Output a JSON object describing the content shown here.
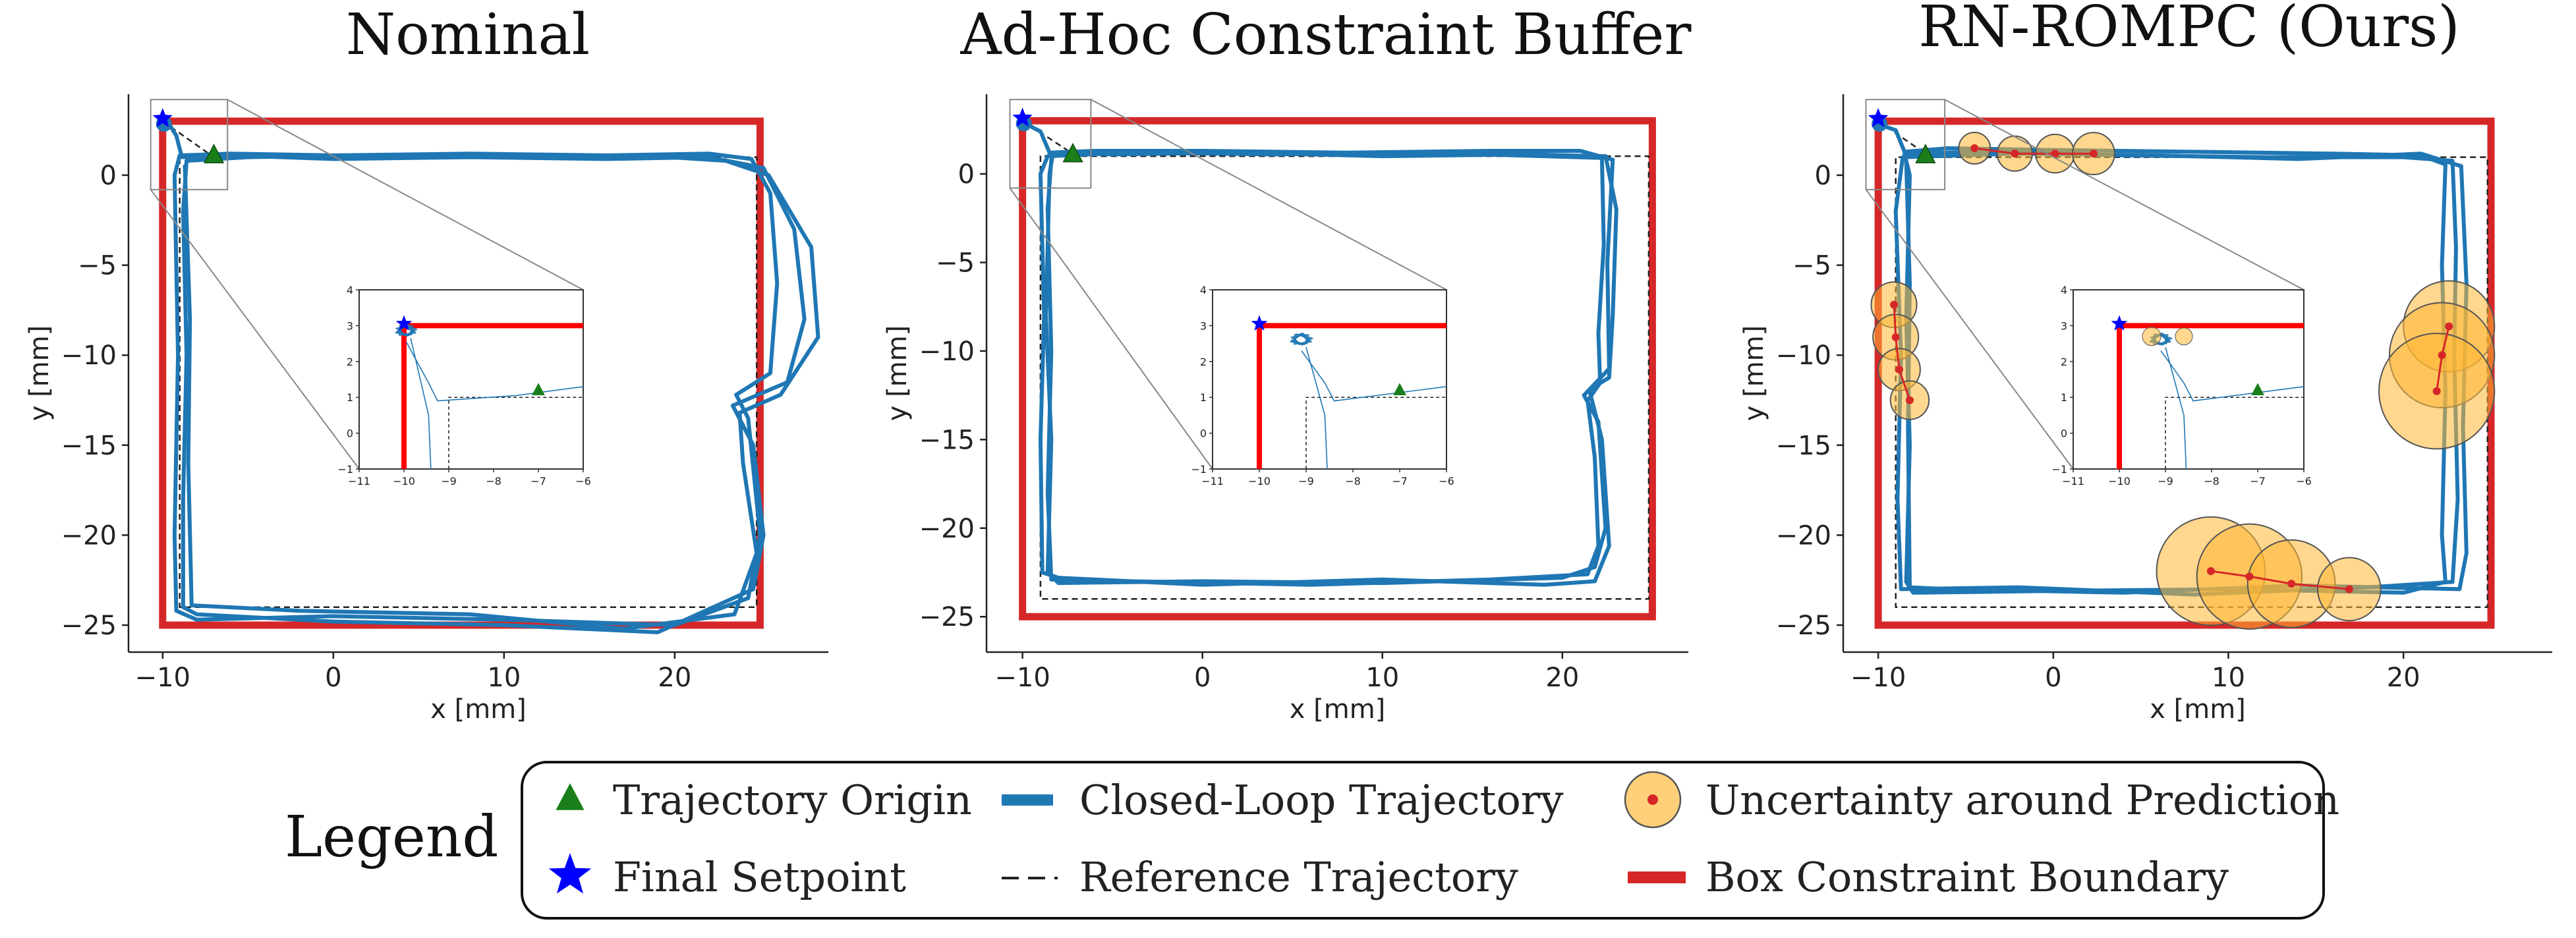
{
  "chart_data": [
    {
      "type": "line",
      "title": "Nominal",
      "xlabel": "x [mm]",
      "ylabel": "y [mm]",
      "xlim": [
        -12,
        29
      ],
      "ylim": [
        -26.5,
        4.5
      ],
      "xticks": [
        -10,
        0,
        10,
        20
      ],
      "yticks": [
        0,
        -5,
        -10,
        -15,
        -20,
        -25
      ],
      "box_constraint": {
        "x": [
          -10,
          25
        ],
        "y": [
          -25,
          3
        ]
      },
      "reference_trajectory": [
        [
          -10,
          3
        ],
        [
          -7,
          1
        ],
        [
          24.8,
          1
        ],
        [
          24.8,
          -24
        ],
        [
          -9,
          -24
        ],
        [
          -9,
          1
        ],
        [
          -7,
          1
        ]
      ],
      "trajectory_origin": [
        -7,
        1.1
      ],
      "final_setpoint": [
        -10,
        3
      ],
      "closed_loop_laps": [
        [
          [
            -10,
            3
          ],
          [
            -9.6,
            2.8
          ],
          [
            -9.2,
            2.2
          ],
          [
            -8.9,
            1.1
          ],
          [
            -6,
            1.2
          ],
          [
            0,
            1.1
          ],
          [
            8,
            1.2
          ],
          [
            16,
            1.1
          ],
          [
            22,
            1.2
          ],
          [
            24.5,
            0.9
          ],
          [
            25.6,
            -1
          ],
          [
            26,
            -6
          ],
          [
            25.6,
            -11
          ],
          [
            23.6,
            -12.2
          ],
          [
            24.3,
            -13.5
          ],
          [
            25,
            -20
          ],
          [
            24.3,
            -23.5
          ],
          [
            20,
            -25
          ],
          [
            10,
            -24.7
          ],
          [
            0,
            -24.5
          ],
          [
            -8,
            -24.7
          ],
          [
            -9.2,
            -24.2
          ],
          [
            -9.3,
            -20
          ],
          [
            -9.1,
            -10
          ],
          [
            -9.3,
            0
          ],
          [
            -9,
            1.1
          ]
        ],
        [
          [
            -9,
            1
          ],
          [
            -6,
            1.1
          ],
          [
            0,
            0.9
          ],
          [
            8,
            1.0
          ],
          [
            16,
            0.9
          ],
          [
            22,
            1.0
          ],
          [
            25.2,
            0.4
          ],
          [
            27,
            -3
          ],
          [
            27.6,
            -8
          ],
          [
            26.6,
            -11.5
          ],
          [
            23.4,
            -12.8
          ],
          [
            24.6,
            -15
          ],
          [
            25.2,
            -20
          ],
          [
            24.6,
            -23
          ],
          [
            19,
            -25.4
          ],
          [
            10,
            -25
          ],
          [
            0,
            -24.8
          ],
          [
            -8,
            -24.4
          ],
          [
            -8.8,
            -24
          ],
          [
            -8.8,
            -18
          ],
          [
            -8.6,
            -10
          ],
          [
            -8.8,
            -2
          ],
          [
            -8.6,
            0.8
          ],
          [
            -7,
            1.1
          ]
        ],
        [
          [
            -8.6,
            0.8
          ],
          [
            -5,
            1.0
          ],
          [
            2,
            1.1
          ],
          [
            10,
            1.0
          ],
          [
            18,
            1.1
          ],
          [
            23,
            0.8
          ],
          [
            25.5,
            0
          ],
          [
            28,
            -4
          ],
          [
            28.4,
            -9
          ],
          [
            26.2,
            -12.2
          ],
          [
            23.8,
            -13.2
          ],
          [
            24,
            -16
          ],
          [
            24.8,
            -21
          ],
          [
            23.5,
            -24.4
          ],
          [
            17,
            -25.2
          ],
          [
            8,
            -24.4
          ],
          [
            -2,
            -24.2
          ],
          [
            -8.3,
            -23.9
          ],
          [
            -8.5,
            -16
          ],
          [
            -8.4,
            -8
          ],
          [
            -8.7,
            0.5
          ]
        ]
      ],
      "inset": {
        "xlim": [
          -11,
          -6
        ],
        "ylim": [
          -1,
          4
        ],
        "xticks": [
          -11,
          -10,
          -9,
          -8,
          -7,
          -6
        ],
        "yticks": [
          -1,
          0,
          1,
          2,
          3,
          4
        ]
      }
    },
    {
      "type": "line",
      "title": "Ad-Hoc Constraint Buffer",
      "xlabel": "x [mm]",
      "ylabel": "y [mm]",
      "xlim": [
        -12,
        27
      ],
      "ylim": [
        -27,
        4.5
      ],
      "xticks": [
        -10,
        0,
        10,
        20
      ],
      "yticks": [
        0,
        -5,
        -10,
        -15,
        -20,
        -25
      ],
      "box_constraint": {
        "x": [
          -10,
          25
        ],
        "y": [
          -25,
          3
        ]
      },
      "reference_trajectory": [
        [
          -10,
          3
        ],
        [
          -7,
          1
        ],
        [
          24.8,
          1
        ],
        [
          24.8,
          -24
        ],
        [
          -9,
          -24
        ],
        [
          -9,
          1
        ],
        [
          -7,
          1
        ]
      ],
      "trajectory_origin": [
        -7.2,
        1.1
      ],
      "final_setpoint": [
        -10,
        3
      ],
      "closed_loop_laps": [
        [
          [
            -10,
            3
          ],
          [
            -9.4,
            2.6
          ],
          [
            -9,
            2.4
          ],
          [
            -8.5,
            1.2
          ],
          [
            -6,
            1.3
          ],
          [
            0,
            1.3
          ],
          [
            8,
            1.2
          ],
          [
            16,
            1.3
          ],
          [
            21,
            1.3
          ],
          [
            22.8,
            0.8
          ],
          [
            22.5,
            -5
          ],
          [
            22.6,
            -11
          ],
          [
            21.2,
            -12.5
          ],
          [
            22,
            -14
          ],
          [
            22.4,
            -20
          ],
          [
            21.8,
            -22.2
          ],
          [
            20,
            -22.8
          ],
          [
            10,
            -23.1
          ],
          [
            0,
            -23
          ],
          [
            -8,
            -23.1
          ],
          [
            -8.6,
            -22.5
          ],
          [
            -8.4,
            -15
          ],
          [
            -8.7,
            -8
          ],
          [
            -8.5,
            0
          ],
          [
            -8.3,
            1.2
          ]
        ],
        [
          [
            -8.3,
            1.2
          ],
          [
            -5,
            1.1
          ],
          [
            2,
            1.2
          ],
          [
            10,
            1.0
          ],
          [
            18,
            1.1
          ],
          [
            22.4,
            1.0
          ],
          [
            23,
            -2
          ],
          [
            22.8,
            -8
          ],
          [
            22.6,
            -11.5
          ],
          [
            21.5,
            -12.2
          ],
          [
            22.2,
            -15
          ],
          [
            22.6,
            -21
          ],
          [
            21.8,
            -23
          ],
          [
            19,
            -23.2
          ],
          [
            10,
            -22.9
          ],
          [
            0,
            -23.2
          ],
          [
            -8,
            -22.8
          ],
          [
            -8.9,
            -22.5
          ],
          [
            -9,
            -15
          ],
          [
            -8.8,
            -8
          ],
          [
            -9,
            0
          ],
          [
            -8.6,
            1
          ]
        ],
        [
          [
            -8.6,
            1
          ],
          [
            -4,
            1.2
          ],
          [
            4,
            1.1
          ],
          [
            12,
            1.2
          ],
          [
            19,
            1.0
          ],
          [
            22.2,
            0.9
          ],
          [
            22.3,
            -4
          ],
          [
            22,
            -9
          ],
          [
            22.1,
            -11.8
          ],
          [
            21.4,
            -12.8
          ],
          [
            21.8,
            -16
          ],
          [
            22,
            -21
          ],
          [
            21.4,
            -22.6
          ],
          [
            16,
            -22.9
          ],
          [
            6,
            -23.2
          ],
          [
            -4,
            -23
          ],
          [
            -8.4,
            -22.9
          ],
          [
            -8.6,
            -18
          ],
          [
            -8.4,
            -10
          ],
          [
            -8.6,
            -2
          ],
          [
            -8.4,
            0.8
          ]
        ]
      ],
      "inset": {
        "xlim": [
          -11,
          -6
        ],
        "ylim": [
          -1,
          4
        ],
        "xticks": [
          -11,
          -10,
          -9,
          -8,
          -7,
          -6
        ],
        "yticks": [
          -1,
          0,
          1,
          2,
          3,
          4
        ]
      }
    },
    {
      "type": "line",
      "title": "RN-ROMPC (Ours)",
      "xlabel": "x [mm]",
      "ylabel": "y [mm]",
      "xlim": [
        -12,
        28.5
      ],
      "ylim": [
        -26.5,
        4.5
      ],
      "xticks": [
        -10,
        0,
        10,
        20
      ],
      "yticks": [
        0,
        -5,
        -10,
        -15,
        -20,
        -25
      ],
      "box_constraint": {
        "x": [
          -10,
          25
        ],
        "y": [
          -25,
          3
        ]
      },
      "reference_trajectory": [
        [
          -10,
          3
        ],
        [
          -7,
          1
        ],
        [
          24.8,
          1
        ],
        [
          24.8,
          -24
        ],
        [
          -9,
          -24
        ],
        [
          -9,
          1
        ],
        [
          -7,
          1
        ]
      ],
      "trajectory_origin": [
        -7.3,
        1.1
      ],
      "final_setpoint": [
        -10,
        3
      ],
      "closed_loop_laps": [
        [
          [
            -10,
            3
          ],
          [
            -9.6,
            2.7
          ],
          [
            -9,
            2.5
          ],
          [
            -8.5,
            1.3
          ],
          [
            -6,
            1.5
          ],
          [
            0,
            1.4
          ],
          [
            8,
            1.3
          ],
          [
            16,
            1.2
          ],
          [
            21,
            1.1
          ],
          [
            22.4,
            0.6
          ],
          [
            22.2,
            -5
          ],
          [
            22.4,
            -12
          ],
          [
            22.2,
            -20
          ],
          [
            22.4,
            -22.6
          ],
          [
            20,
            -23.2
          ],
          [
            10,
            -23
          ],
          [
            0,
            -23.1
          ],
          [
            -8,
            -23.2
          ],
          [
            -8.4,
            -22.6
          ],
          [
            -8.2,
            -15
          ],
          [
            -8.4,
            -8
          ],
          [
            -8.2,
            0
          ],
          [
            -8.5,
            1.2
          ]
        ],
        [
          [
            -8.5,
            1.2
          ],
          [
            -4,
            1.3
          ],
          [
            4,
            1.1
          ],
          [
            12,
            1.0
          ],
          [
            20,
            1.0
          ],
          [
            22.8,
            0.8
          ],
          [
            23,
            -4
          ],
          [
            22.9,
            -10
          ],
          [
            23.1,
            -18
          ],
          [
            22.8,
            -22.6
          ],
          [
            18,
            -22.9
          ],
          [
            8,
            -23.3
          ],
          [
            -2,
            -22.9
          ],
          [
            -8.7,
            -23
          ],
          [
            -8.9,
            -18
          ],
          [
            -8.7,
            -10
          ],
          [
            -9,
            -2
          ],
          [
            -8.6,
            1
          ]
        ],
        [
          [
            -8.6,
            1
          ],
          [
            -2,
            1.2
          ],
          [
            6,
            1.1
          ],
          [
            14,
            0.9
          ],
          [
            21,
            1.2
          ],
          [
            23.3,
            0.5
          ],
          [
            23.6,
            -6
          ],
          [
            23.4,
            -14
          ],
          [
            23.6,
            -21
          ],
          [
            23.2,
            -23
          ],
          [
            14,
            -22.8
          ],
          [
            4,
            -23.2
          ],
          [
            -6,
            -23
          ],
          [
            -8.2,
            -22.9
          ],
          [
            -8.3,
            -14
          ],
          [
            -8.2,
            -6
          ],
          [
            -8.4,
            0.8
          ]
        ]
      ],
      "uncertainty_clusters": [
        {
          "centers": [
            [
              -4.5,
              1.5
            ],
            [
              -2.2,
              1.2
            ],
            [
              0.1,
              1.2
            ],
            [
              2.3,
              1.2
            ]
          ],
          "radii": [
            0.9,
            1.0,
            1.1,
            1.2
          ]
        },
        {
          "centers": [
            [
              -9.1,
              -7.2
            ],
            [
              -9.0,
              -9.0
            ],
            [
              -8.8,
              -10.8
            ],
            [
              -8.2,
              -12.5
            ]
          ],
          "radii": [
            1.3,
            1.3,
            1.2,
            1.1
          ]
        },
        {
          "centers": [
            [
              22.6,
              -8.4
            ],
            [
              22.2,
              -10.0
            ],
            [
              21.9,
              -12.0
            ]
          ],
          "radii": [
            2.6,
            3.0,
            3.3
          ]
        },
        {
          "centers": [
            [
              9,
              -22.0
            ],
            [
              11.2,
              -22.3
            ],
            [
              13.6,
              -22.7
            ],
            [
              16.9,
              -23.0
            ]
          ],
          "radii": [
            3.1,
            3.0,
            2.5,
            1.8
          ]
        }
      ],
      "inset": {
        "xlim": [
          -11,
          -6
        ],
        "ylim": [
          -1,
          4
        ],
        "xticks": [
          -11,
          -10,
          -9,
          -8,
          -7,
          -6
        ],
        "yticks": [
          -1,
          0,
          1,
          2,
          3,
          4
        ]
      }
    }
  ],
  "legend": {
    "title": "Legend",
    "items": [
      {
        "label": "Trajectory Origin",
        "icon": "green-triangle"
      },
      {
        "label": "Closed-Loop Trajectory",
        "icon": "blue-line"
      },
      {
        "label": "Uncertainty around Prediction",
        "icon": "orange-circle"
      },
      {
        "label": "Final Setpoint",
        "icon": "blue-star"
      },
      {
        "label": "Reference Trajectory",
        "icon": "dashed-line"
      },
      {
        "label": "Box Constraint Boundary",
        "icon": "red-bar"
      }
    ]
  },
  "colors": {
    "trajectory": "#1f77b4",
    "constraint": "#d62728",
    "inset_constraint": "#ff0000",
    "origin": "#1a7f1a",
    "setpoint": "#0000ff",
    "uncertainty_fill": "#ffb733",
    "prediction": "#d62728",
    "reference": "#222222"
  }
}
